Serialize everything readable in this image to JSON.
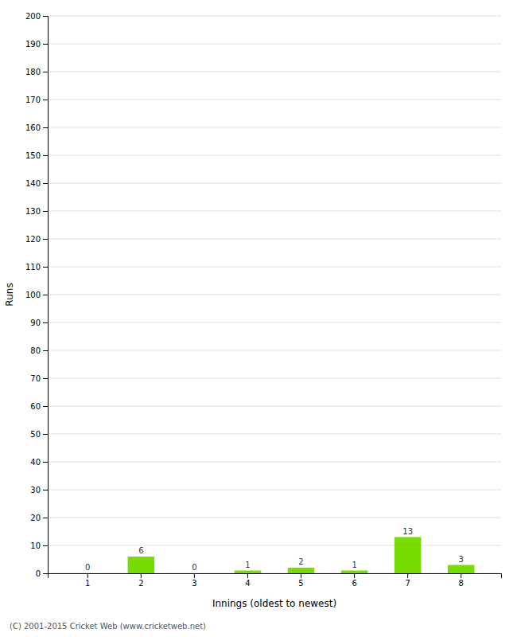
{
  "chart_data": {
    "type": "bar",
    "categories": [
      "1",
      "2",
      "3",
      "4",
      "5",
      "6",
      "7",
      "8"
    ],
    "values": [
      0,
      6,
      0,
      1,
      2,
      1,
      13,
      3
    ],
    "color": "#77dd00",
    "x_label": "Innings (oldest to newest)",
    "y_label": "Runs",
    "ylim": [
      0,
      200
    ],
    "yticks": [
      0,
      10,
      20,
      30,
      40,
      50,
      60,
      70,
      80,
      90,
      100,
      110,
      120,
      130,
      140,
      150,
      160,
      170,
      180,
      190,
      200
    ],
    "grid": true,
    "data_labels": true,
    "footer": "(C) 2001-2015 Cricket Web (www.cricketweb.net)"
  }
}
